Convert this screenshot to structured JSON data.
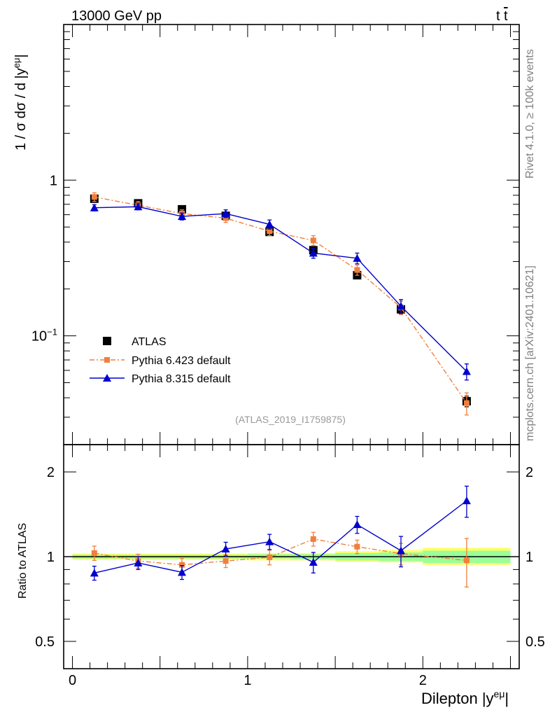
{
  "header": {
    "left": "13000 GeV pp",
    "right_main": "t",
    "right_bar": "t"
  },
  "side_labels": {
    "rivet": "Rivet 4.1.0, ≥ 100k events",
    "mcplots": "mcplots.cern.ch [arXiv:2401.10621]"
  },
  "watermark": "(ATLAS_2019_I1759875)",
  "y_label_main": {
    "pre": "1 / σ  dσ / d |y",
    "sup": "eμ",
    "post": "|"
  },
  "y_label_ratio": "Ratio to ATLAS",
  "x_label": {
    "pre": "Dilepton |y",
    "sup": "eμ",
    "post": "|"
  },
  "colors": {
    "atlas": "#000000",
    "py6": "#f07f3c",
    "py8": "#0000cc",
    "band_inner": "#99ff99",
    "band_outer": "#ffff66"
  },
  "chart_data": [
    {
      "type": "scatter",
      "title": "",
      "xlabel": "Dilepton |y^eμ|",
      "ylabel": "1 / σ dσ / d |y^eμ|",
      "xlim": [
        -0.05,
        2.55
      ],
      "ylim": [
        0.02,
        10
      ],
      "yscale": "log",
      "x_ticks": [
        "0",
        "1",
        "2"
      ],
      "y_tick_labels": [
        {
          "value": 1,
          "label": "1"
        },
        {
          "value": 0.1,
          "label": "10",
          "sup": "−1"
        }
      ],
      "legend_position": "bottom-left",
      "x": [
        0.125,
        0.375,
        0.625,
        0.875,
        1.125,
        1.375,
        1.625,
        1.875,
        2.25
      ],
      "x_err": [
        0.125,
        0.125,
        0.125,
        0.125,
        0.125,
        0.125,
        0.125,
        0.125,
        0.25
      ],
      "series": [
        {
          "name": "ATLAS",
          "marker": "square",
          "values": [
            0.76,
            0.71,
            0.65,
            0.59,
            0.465,
            0.355,
            0.245,
            0.148,
            0.038
          ],
          "errors": [
            0.02,
            0.02,
            0.02,
            0.02,
            0.02,
            0.015,
            0.012,
            0.008,
            0.003
          ]
        },
        {
          "name": "Pythia 6.423 default",
          "marker": "square-small",
          "line": "dashdot",
          "values": [
            0.78,
            0.69,
            0.61,
            0.57,
            0.47,
            0.41,
            0.265,
            0.152,
            0.037
          ],
          "errors": [
            0.05,
            0.04,
            0.035,
            0.035,
            0.03,
            0.03,
            0.02,
            0.015,
            0.006
          ]
        },
        {
          "name": "Pythia 8.315 default",
          "marker": "triangle",
          "line": "solid",
          "values": [
            0.665,
            0.675,
            0.585,
            0.61,
            0.52,
            0.34,
            0.315,
            0.155,
            0.059
          ],
          "errors": [
            0.03,
            0.03,
            0.03,
            0.035,
            0.035,
            0.025,
            0.025,
            0.016,
            0.007
          ]
        }
      ]
    },
    {
      "type": "scatter",
      "title": "",
      "xlabel": "Dilepton |y^eμ|",
      "ylabel": "Ratio to ATLAS",
      "xlim": [
        -0.05,
        2.55
      ],
      "ylim": [
        0.4,
        2.5
      ],
      "yscale": "log",
      "y_tick_labels": [
        {
          "value": 0.5,
          "label": "0.5"
        },
        {
          "value": 1,
          "label": "1"
        },
        {
          "value": 2,
          "label": "2"
        }
      ],
      "reference_line": 1,
      "band_edges": [
        0,
        0.25,
        0.5,
        0.75,
        1.0,
        1.25,
        1.5,
        1.75,
        2.0,
        2.5
      ],
      "band_inner": [
        [
          0.985,
          1.015
        ],
        [
          0.985,
          1.015
        ],
        [
          0.985,
          1.015
        ],
        [
          0.985,
          1.015
        ],
        [
          0.985,
          1.02
        ],
        [
          0.98,
          1.02
        ],
        [
          0.97,
          1.03
        ],
        [
          0.965,
          1.035
        ],
        [
          0.95,
          1.05
        ]
      ],
      "band_outer": [
        [
          0.975,
          1.025
        ],
        [
          0.975,
          1.025
        ],
        [
          0.975,
          1.025
        ],
        [
          0.975,
          1.025
        ],
        [
          0.97,
          1.03
        ],
        [
          0.97,
          1.03
        ],
        [
          0.96,
          1.045
        ],
        [
          0.955,
          1.055
        ],
        [
          0.935,
          1.075
        ]
      ],
      "x": [
        0.125,
        0.375,
        0.625,
        0.875,
        1.125,
        1.375,
        1.625,
        1.875,
        2.25
      ],
      "x_err": [
        0.125,
        0.125,
        0.125,
        0.125,
        0.125,
        0.125,
        0.125,
        0.125,
        0.25
      ],
      "series": [
        {
          "name": "Pythia 6.423 default",
          "values": [
            1.03,
            0.965,
            0.935,
            0.965,
            0.995,
            1.155,
            1.085,
            1.025,
            0.97
          ],
          "errors": [
            0.06,
            0.055,
            0.05,
            0.05,
            0.06,
            0.065,
            0.06,
            0.09,
            0.19
          ]
        },
        {
          "name": "Pythia 8.315 default",
          "values": [
            0.875,
            0.95,
            0.88,
            1.065,
            1.13,
            0.955,
            1.3,
            1.05,
            1.58
          ],
          "errors": [
            0.05,
            0.05,
            0.05,
            0.06,
            0.07,
            0.08,
            0.09,
            0.13,
            0.2
          ]
        }
      ]
    }
  ]
}
